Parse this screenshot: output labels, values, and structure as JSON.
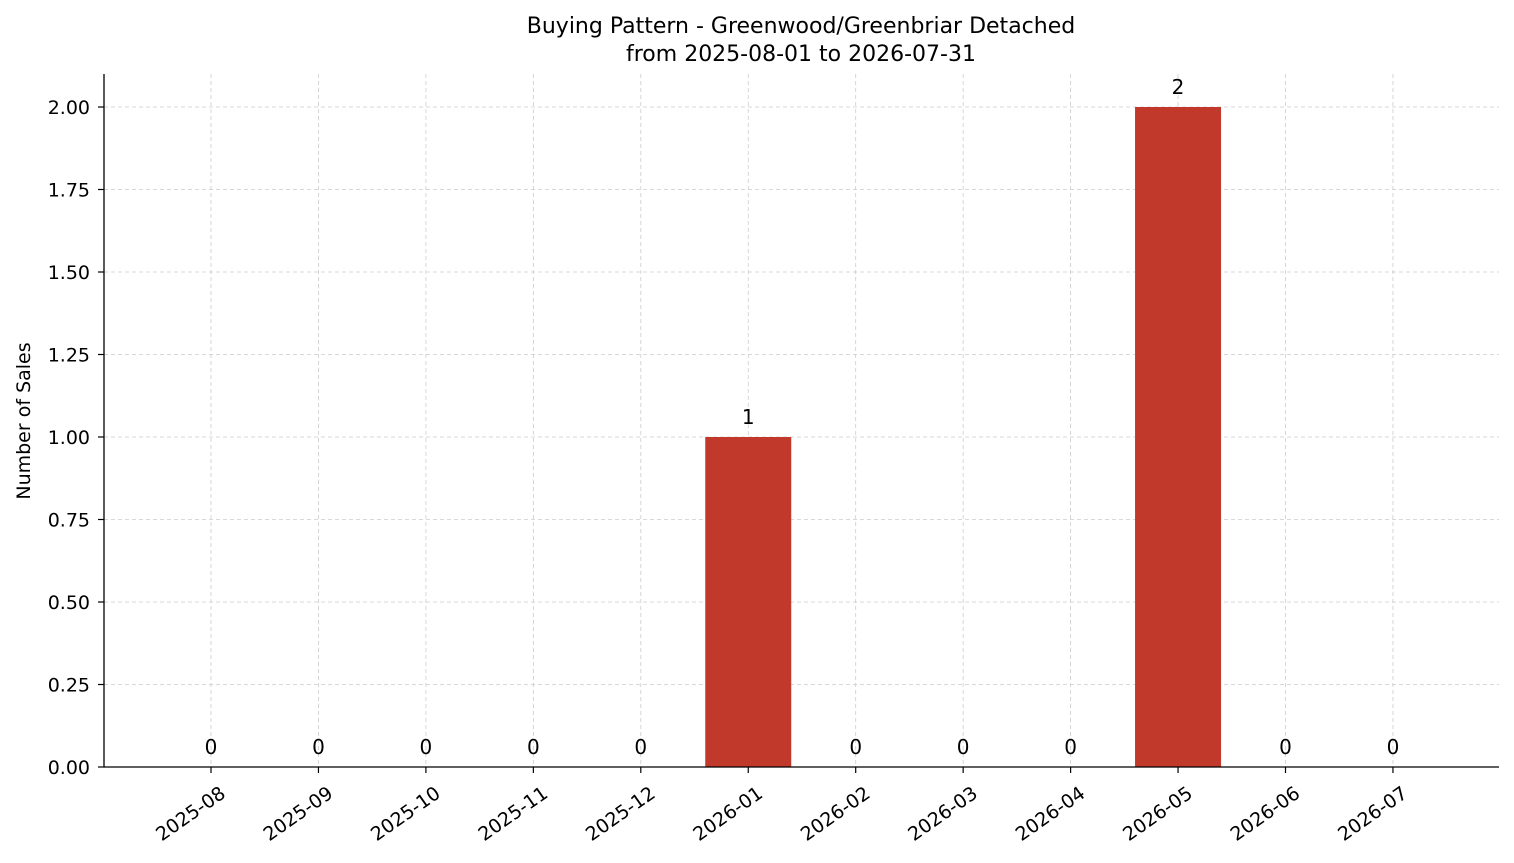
{
  "chart_data": {
    "type": "bar",
    "title": "Buying Pattern - Greenwood/Greenbriar Detached",
    "subtitle": "from 2025-08-01 to 2026-07-31",
    "xlabel": "",
    "ylabel": "Number of Sales",
    "categories": [
      "2025-08",
      "2025-09",
      "2025-10",
      "2025-11",
      "2025-12",
      "2026-01",
      "2026-02",
      "2026-03",
      "2026-04",
      "2026-05",
      "2026-06",
      "2026-07"
    ],
    "values": [
      0,
      0,
      0,
      0,
      0,
      1,
      0,
      0,
      0,
      2,
      0,
      0
    ],
    "data_labels": [
      "0",
      "0",
      "0",
      "0",
      "0",
      "1",
      "0",
      "0",
      "0",
      "2",
      "0",
      "0"
    ],
    "yticks": [
      0,
      0.25,
      0.5,
      0.75,
      1.0,
      1.25,
      1.5,
      1.75,
      2.0
    ],
    "ytick_labels": [
      "0.00",
      "0.25",
      "0.50",
      "0.75",
      "1.00",
      "1.25",
      "1.50",
      "1.75",
      "2.00"
    ],
    "ylim": [
      0,
      2.1
    ],
    "grid": true,
    "bar_color": "#c0392b"
  }
}
